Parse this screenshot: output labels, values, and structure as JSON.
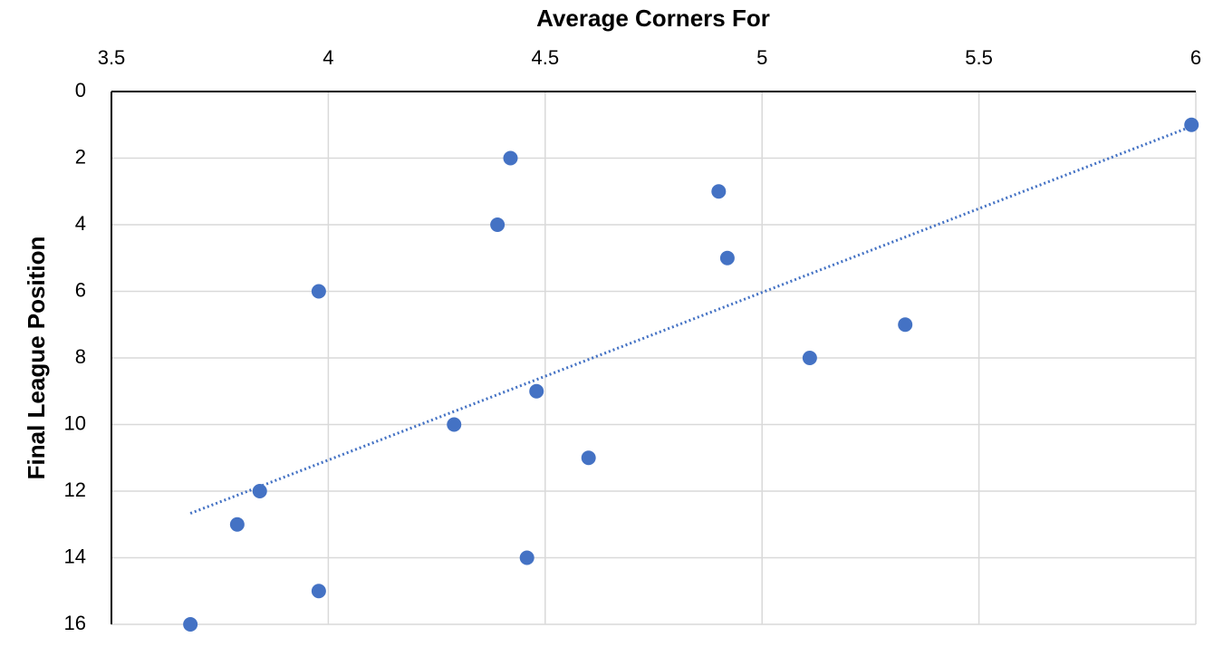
{
  "chart_data": {
    "type": "scatter",
    "x_title": "Average Corners For",
    "y_title": "Final League Position",
    "x": [
      3.682,
      3.79,
      3.842,
      3.978,
      3.978,
      4.29,
      4.39,
      4.42,
      4.458,
      4.48,
      4.6,
      4.9,
      4.92,
      5.11,
      5.33,
      5.99
    ],
    "series": [
      {
        "color": "#4472c4",
        "values": [
          16,
          13,
          12,
          6,
          15,
          10,
          4,
          2,
          14,
          9,
          11,
          3,
          5,
          8,
          7,
          1
        ]
      }
    ],
    "xlim": [
      3.5,
      6
    ],
    "xticks": [
      3.5,
      4,
      4.5,
      5,
      5.5,
      6
    ],
    "ylim": [
      0,
      16
    ],
    "yticks": [
      0,
      2,
      4,
      6,
      8,
      10,
      12,
      14,
      16
    ],
    "y_reversed": true,
    "x_axis_position": "top",
    "grid": true,
    "trendline": "linear",
    "trendline_style": "dotted"
  }
}
